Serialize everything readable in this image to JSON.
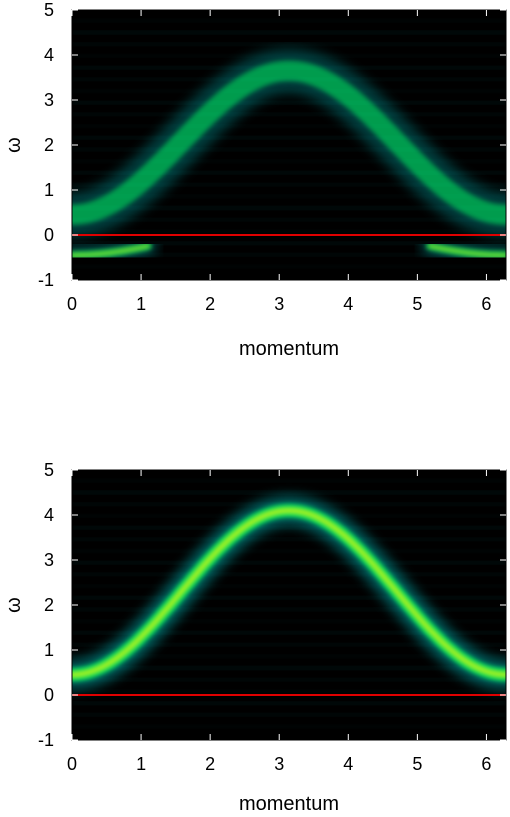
{
  "chart_data": [
    {
      "type": "heatmap",
      "xlabel": "momentum",
      "ylabel": "ω",
      "xlim": [
        0,
        6.2832
      ],
      "ylim": [
        -1,
        5
      ],
      "xticks": [
        "0",
        "1",
        "2",
        "3",
        "4",
        "5",
        "6"
      ],
      "yticks": [
        "-1",
        "0",
        "1",
        "2",
        "3",
        "4",
        "5"
      ],
      "reference_line": {
        "y": 0,
        "color": "#e00000"
      },
      "colormap": [
        "#000000",
        "#00c8c8",
        "#00ff60",
        "#ffff00"
      ],
      "bands": [
        {
          "name": "",
          "shape": "cosine",
          "omega_at_k0": 0.45,
          "omega_at_kpi": 3.65,
          "width": 0.45,
          "intensity": 0.55
        },
        {
          "name": "",
          "shape": "cosine-lower",
          "omega_at_k0": -0.45,
          "omega_at_kpi": 0.3,
          "width": 0.18,
          "intensity": 0.7,
          "k_extent": 1.1
        }
      ]
    },
    {
      "type": "heatmap",
      "xlabel": "momentum",
      "ylabel": "ω",
      "xlim": [
        0,
        6.2832
      ],
      "ylim": [
        -1,
        5
      ],
      "xticks": [
        "0",
        "1",
        "2",
        "3",
        "4",
        "5",
        "6"
      ],
      "yticks": [
        "-1",
        "0",
        "1",
        "2",
        "3",
        "4",
        "5"
      ],
      "reference_line": {
        "y": 0,
        "color": "#e00000"
      },
      "colormap": [
        "#000000",
        "#00c8c8",
        "#00ff60",
        "#ffff00"
      ],
      "bands": [
        {
          "name": "",
          "shape": "cosine",
          "omega_at_k0": 0.45,
          "omega_at_kpi": 4.1,
          "width": 0.3,
          "intensity": 0.85
        },
        {
          "name": "",
          "shape": "flat",
          "omega_at_k0": -0.35,
          "omega_at_kpi": -0.35,
          "width": 0.12,
          "intensity": 0.35,
          "k_extent": 0.5
        }
      ]
    }
  ]
}
